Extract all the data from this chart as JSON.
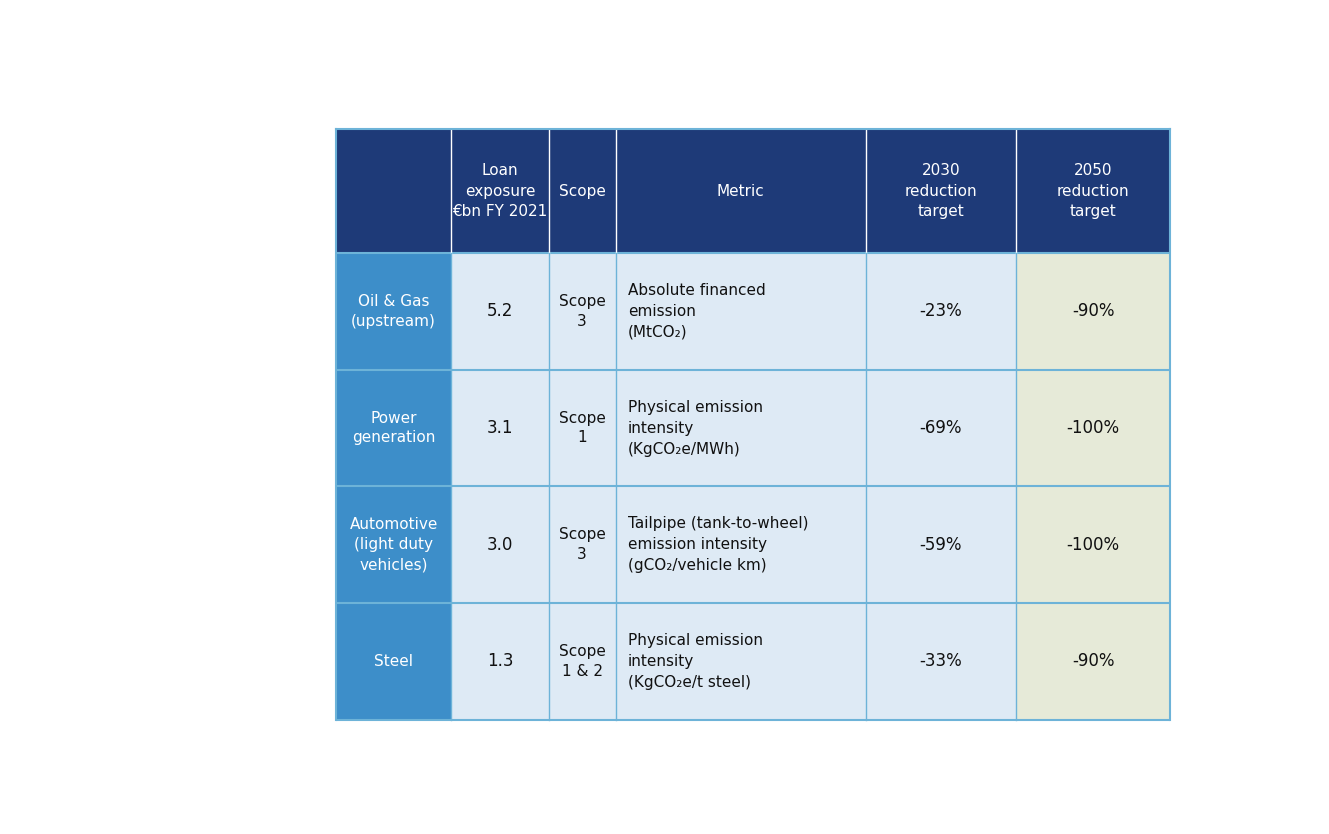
{
  "background_color": "#ffffff",
  "header_bg": "#1e3a78",
  "header_text_color": "#ffffff",
  "sector_bg": "#3d8ec9",
  "sector_text_color": "#ffffff",
  "row_bg_light": "#deeaf5",
  "row_bg_2050": "#e6ead8",
  "divider_color": "#6db3d8",
  "text_color_dark": "#111111",
  "col_headers": [
    "Loan\nexposure\n€bn FY 2021",
    "Scope",
    "Metric",
    "2030\nreduction\ntarget",
    "2050\nreduction\ntarget"
  ],
  "sectors": [
    "Oil & Gas\n(upstream)",
    "Power\ngeneration",
    "Automotive\n(light duty\nvehicles)",
    "Steel"
  ],
  "loan_exposure": [
    "5.2",
    "3.1",
    "3.0",
    "1.3"
  ],
  "scope": [
    "Scope\n3",
    "Scope\n1",
    "Scope\n3",
    "Scope\n1 & 2"
  ],
  "metric_lines": [
    "Absolute financed\nemission\n(MtCO₂)",
    "Physical emission\nintensity\n(KgCO₂e/MWh)",
    "Tailpipe (tank-to-wheel)\nemission intensity\n(gCO₂/vehicle km)",
    "Physical emission\nintensity\n(KgCO₂e/t steel)"
  ],
  "target_2030": [
    "-23%",
    "-69%",
    "-59%",
    "-33%"
  ],
  "target_2050": [
    "-90%",
    "-100%",
    "-100%",
    "-90%"
  ]
}
